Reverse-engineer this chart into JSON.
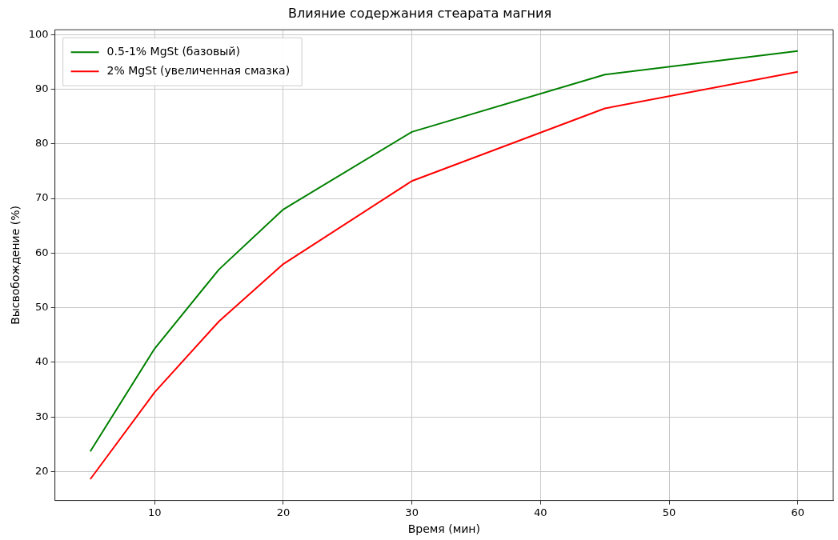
{
  "chart_data": {
    "type": "line",
    "title": "Влияние содержания стеарата магния",
    "xlabel": "Время (мин)",
    "ylabel": "Высвобождение (%)",
    "x": [
      5,
      10,
      15,
      20,
      30,
      45,
      60
    ],
    "series": [
      {
        "name": "0.5-1% MgSt (базовый)",
        "color": "#008000",
        "values": [
          23.7,
          42.5,
          57,
          68,
          82.2,
          92.7,
          97
        ]
      },
      {
        "name": "2% MgSt (увеличенная смазка)",
        "color": "#ff0000",
        "values": [
          18.6,
          34.5,
          47.5,
          58,
          73.2,
          86.5,
          93.2
        ]
      }
    ],
    "xlim": [
      2.25,
      62.75
    ],
    "xticks": [
      10,
      20,
      30,
      40,
      50,
      60
    ],
    "ylim": [
      14.7,
      100.9
    ],
    "yticks": [
      20,
      30,
      40,
      50,
      60,
      70,
      80,
      90,
      100
    ],
    "grid": true,
    "legend": "top left",
    "marker": "none",
    "line_style": "solid"
  }
}
